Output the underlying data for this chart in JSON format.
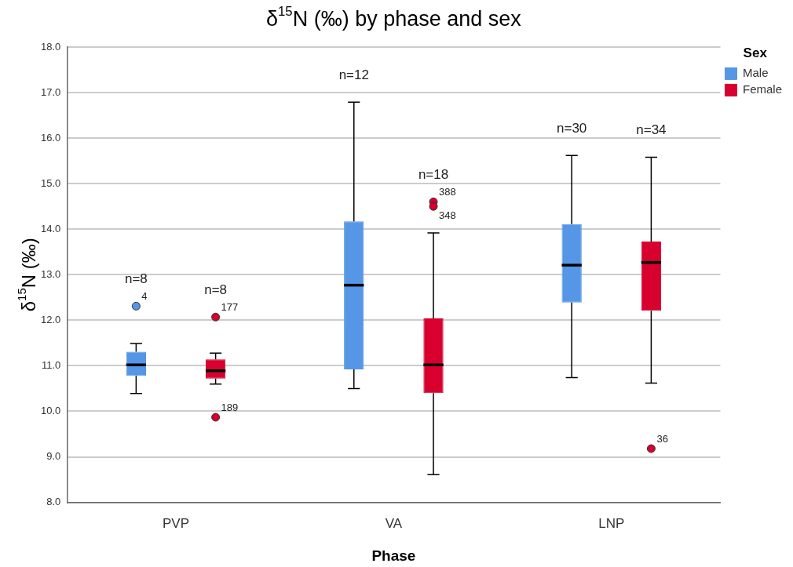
{
  "chart_data": {
    "type": "box",
    "title": "δ$^{15}$N (‰) by phase and sex",
    "xlabel": "Phase",
    "ylabel": "δ$^{15}$N (‰)",
    "legend_title": "Sex",
    "legend": "top right",
    "grid": "y",
    "categories": [
      "PVP",
      "VA",
      "LNP"
    ],
    "ylim": [
      8,
      18
    ],
    "yticks": [
      {
        "value": 8,
        "label": "8.0"
      },
      {
        "value": 9,
        "label": "9.0"
      },
      {
        "value": 10,
        "label": "10.0"
      },
      {
        "value": 11,
        "label": "11.0"
      },
      {
        "value": 12,
        "label": "12.0"
      },
      {
        "value": 13,
        "label": "13.0"
      },
      {
        "value": 14,
        "label": "14.0"
      },
      {
        "value": 15,
        "label": "15.0"
      },
      {
        "value": 16,
        "label": "16.0"
      },
      {
        "value": 17,
        "label": "17.0"
      },
      {
        "value": 18,
        "label": "18.0"
      }
    ],
    "series": [
      {
        "name": "Male",
        "color": "#5596e6",
        "boxes": [
          {
            "low": 10.39,
            "q1": 10.78,
            "median": 11.02,
            "q3": 11.31,
            "high": 11.49,
            "outliers": [
              12.31
            ]
          },
          {
            "low": 10.5,
            "q1": 10.92,
            "median": 12.77,
            "q3": 14.17,
            "high": 16.79
          },
          {
            "low": 10.74,
            "q1": 12.39,
            "median": 13.21,
            "q3": 14.11,
            "high": 15.62
          }
        ]
      },
      {
        "name": "Female",
        "color": "#d7002e",
        "boxes": [
          {
            "low": 10.6,
            "q1": 10.72,
            "median": 10.89,
            "q3": 11.14,
            "high": 11.28,
            "outliers": [
              12.07,
              9.87
            ]
          },
          {
            "low": 8.61,
            "q1": 10.4,
            "median": 11.02,
            "q3": 12.04,
            "high": 13.92,
            "outliers": [
              14.6,
              14.5
            ]
          },
          {
            "low": 10.62,
            "q1": 12.21,
            "median": 13.27,
            "q3": 13.73,
            "high": 15.58,
            "outliers": [
              9.18
            ]
          }
        ]
      }
    ],
    "annotations": [
      "n=8",
      "4",
      "n=8",
      "177",
      "189",
      "n=12",
      "n=18",
      "388",
      "348",
      "n=30",
      "n=34",
      "36"
    ]
  }
}
